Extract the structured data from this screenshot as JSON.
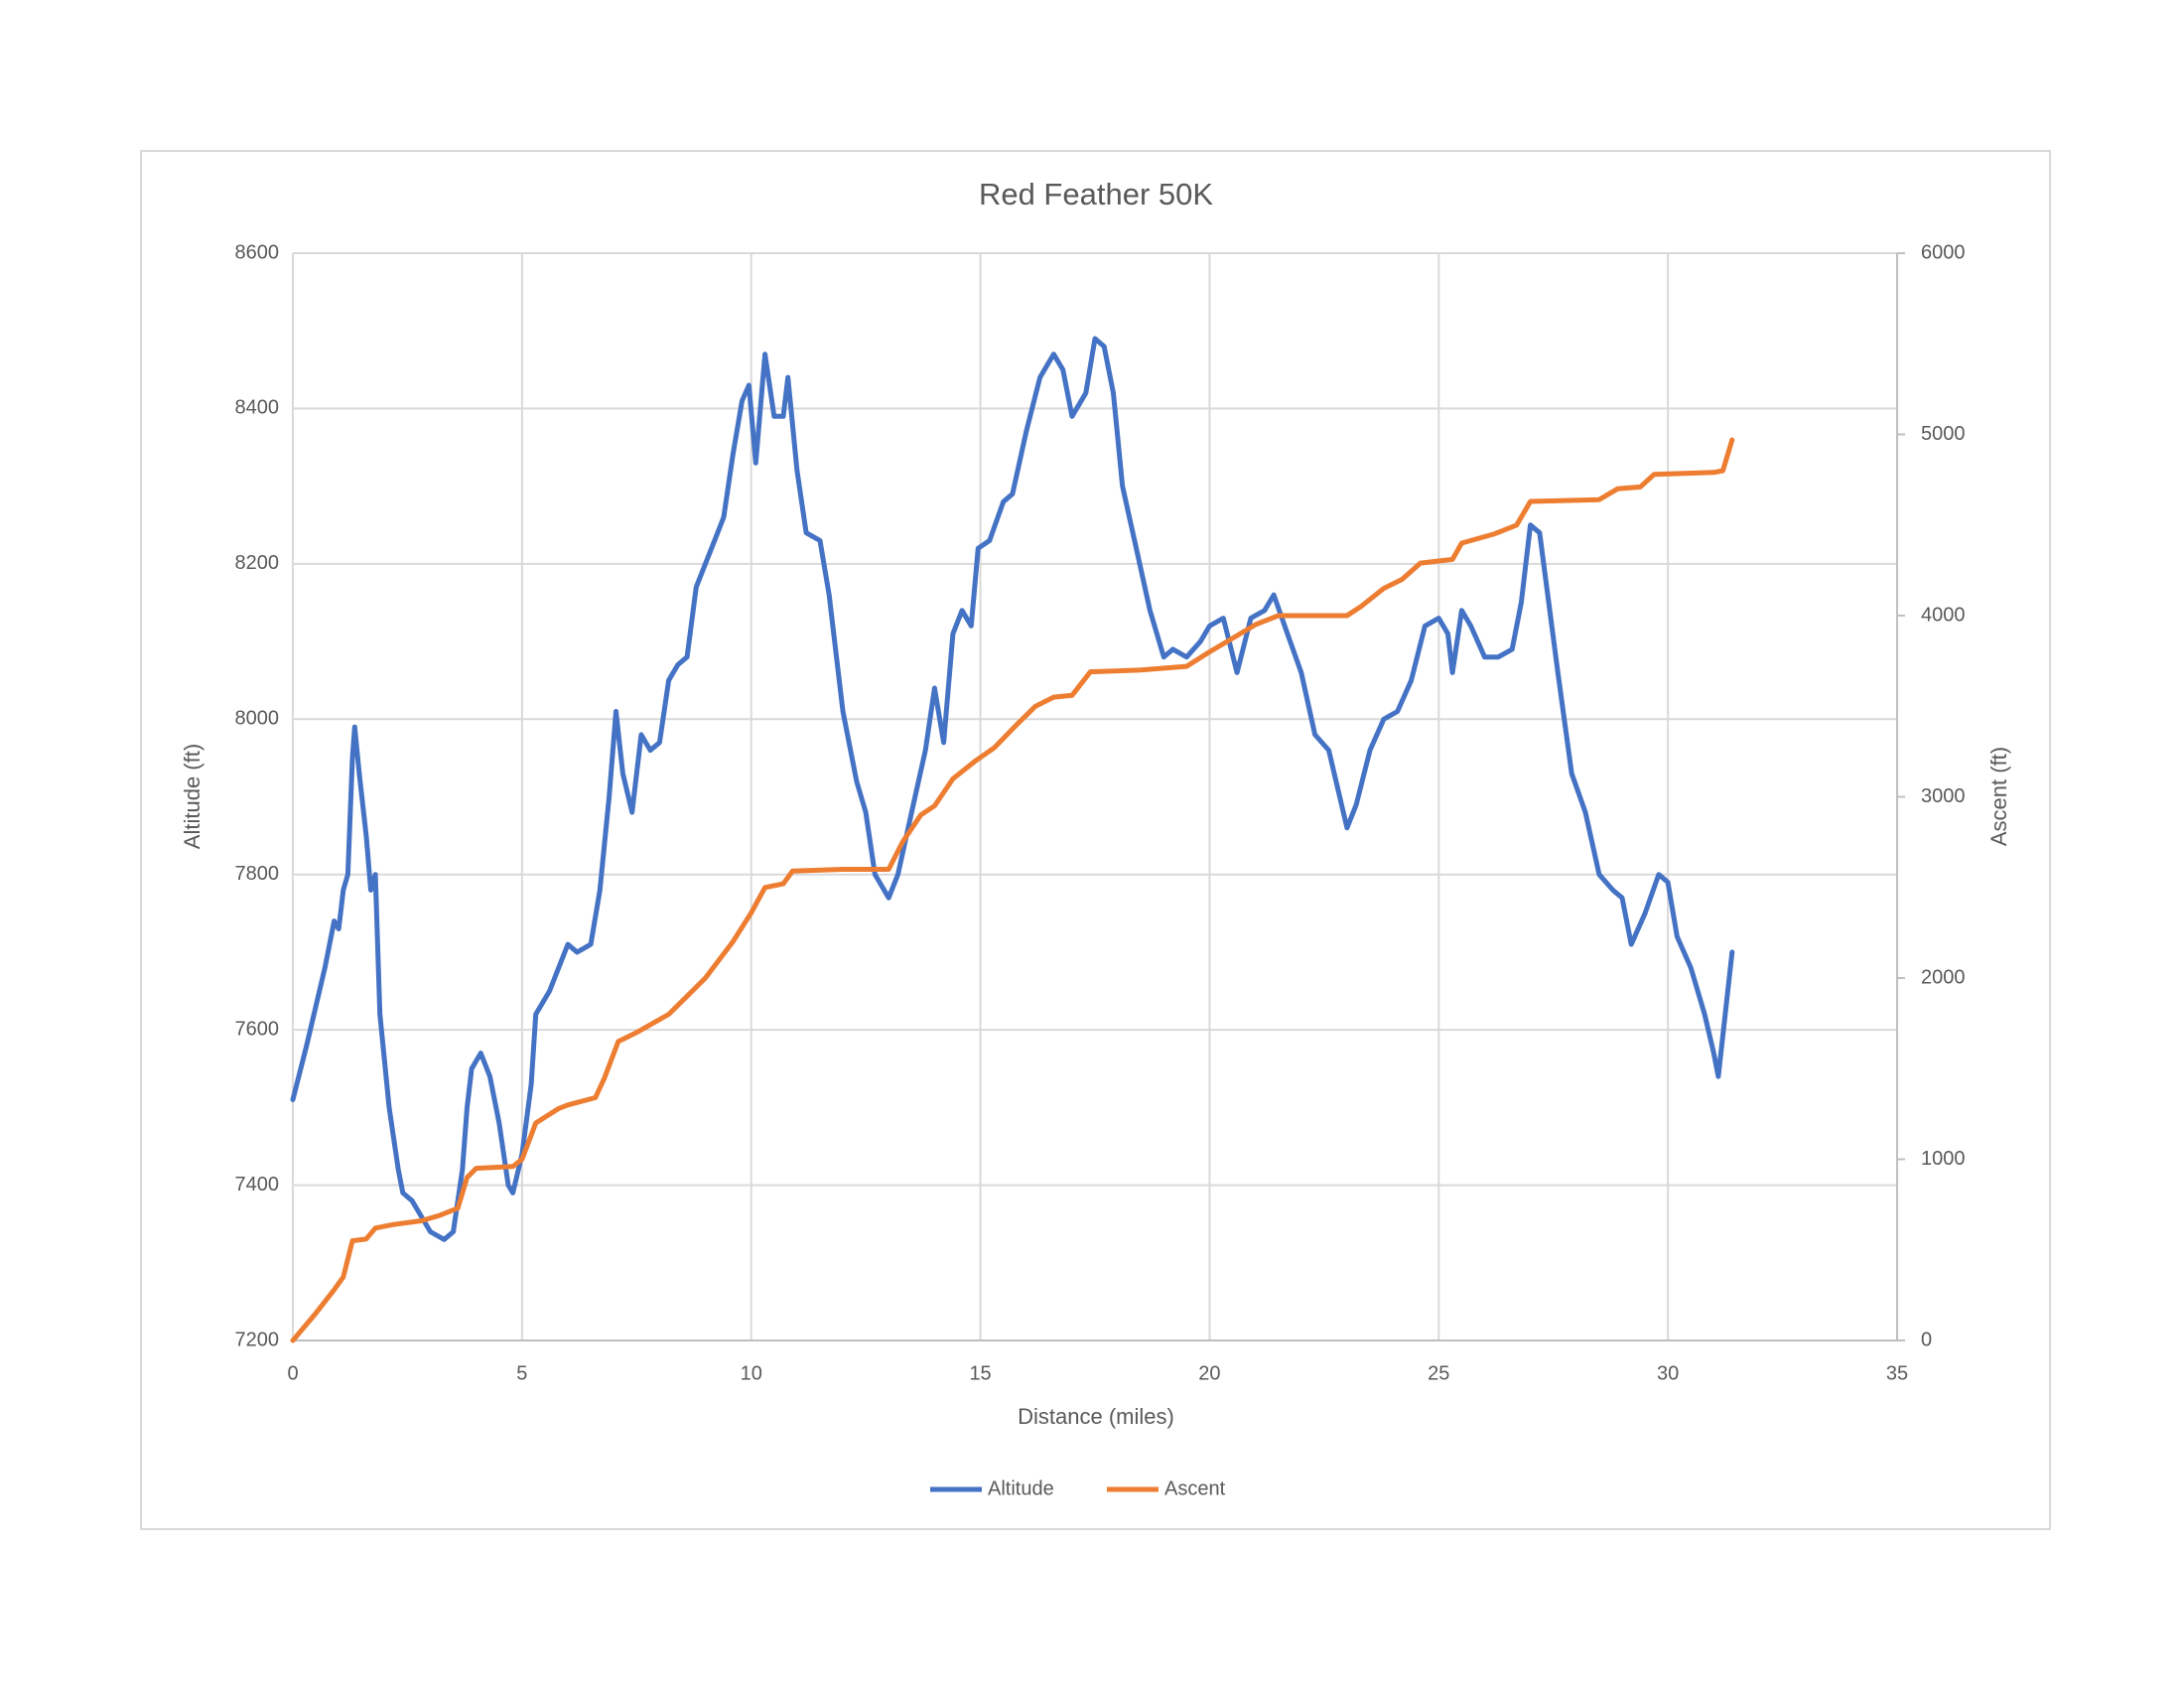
{
  "chart_data": {
    "type": "line",
    "title": "Red Feather 50K",
    "x_label": "Distance (miles)",
    "y_label": "Altitude (ft)",
    "y2_label": "Ascent (ft)",
    "xlim": [
      0,
      35
    ],
    "xticks": [
      0,
      5,
      10,
      15,
      20,
      25,
      30,
      35
    ],
    "ylim": [
      7200,
      8600
    ],
    "yticks": [
      7200,
      7400,
      7600,
      7800,
      8000,
      8200,
      8400,
      8600
    ],
    "y2lim": [
      0,
      6000
    ],
    "y2ticks": [
      0,
      1000,
      2000,
      3000,
      4000,
      5000,
      6000
    ],
    "grid": true,
    "legend": "bottom",
    "series": [
      {
        "name": "Altitude",
        "color": "#4472c4",
        "axis": "y",
        "x": [
          0,
          0.3,
          0.5,
          0.7,
          0.9,
          1.0,
          1.1,
          1.2,
          1.3,
          1.35,
          1.45,
          1.6,
          1.7,
          1.8,
          1.9,
          2.1,
          2.3,
          2.4,
          2.6,
          2.8,
          3.0,
          3.3,
          3.5,
          3.7,
          3.8,
          3.9,
          4.1,
          4.3,
          4.5,
          4.7,
          4.8,
          5.0,
          5.2,
          5.3,
          5.6,
          5.8,
          6.0,
          6.2,
          6.5,
          6.7,
          6.9,
          7.05,
          7.2,
          7.4,
          7.6,
          7.8,
          8.0,
          8.2,
          8.4,
          8.6,
          8.8,
          9.0,
          9.2,
          9.4,
          9.6,
          9.8,
          9.95,
          10.1,
          10.3,
          10.5,
          10.7,
          10.8,
          11.0,
          11.2,
          11.5,
          11.7,
          12.0,
          12.3,
          12.5,
          12.7,
          13.0,
          13.2,
          13.5,
          13.8,
          14.0,
          14.2,
          14.4,
          14.6,
          14.8,
          14.95,
          15.2,
          15.5,
          15.7,
          16.0,
          16.3,
          16.6,
          16.8,
          17.0,
          17.3,
          17.5,
          17.7,
          17.9,
          18.1,
          18.4,
          18.7,
          19.0,
          19.2,
          19.5,
          19.8,
          20.0,
          20.3,
          20.6,
          20.9,
          21.2,
          21.4,
          21.7,
          22.0,
          22.3,
          22.6,
          22.8,
          23.0,
          23.2,
          23.5,
          23.8,
          24.1,
          24.4,
          24.7,
          25.0,
          25.2,
          25.3,
          25.5,
          25.7,
          26.0,
          26.3,
          26.6,
          26.8,
          27.0,
          27.2,
          27.4,
          27.6,
          27.9,
          28.2,
          28.5,
          28.8,
          29.0,
          29.2,
          29.5,
          29.8,
          30.0,
          30.2,
          30.5,
          30.8,
          31.0,
          31.1,
          31.4
        ],
        "values": [
          7510,
          7580,
          7630,
          7680,
          7740,
          7730,
          7780,
          7800,
          7950,
          7990,
          7930,
          7850,
          7780,
          7800,
          7620,
          7500,
          7420,
          7390,
          7380,
          7360,
          7340,
          7330,
          7340,
          7420,
          7500,
          7550,
          7570,
          7540,
          7480,
          7400,
          7390,
          7440,
          7530,
          7620,
          7650,
          7680,
          7710,
          7700,
          7710,
          7780,
          7900,
          8010,
          7930,
          7880,
          7980,
          7960,
          7970,
          8050,
          8070,
          8080,
          8170,
          8200,
          8230,
          8260,
          8340,
          8410,
          8430,
          8330,
          8470,
          8390,
          8390,
          8440,
          8320,
          8240,
          8230,
          8160,
          8010,
          7920,
          7880,
          7800,
          7770,
          7800,
          7880,
          7960,
          8040,
          7970,
          8110,
          8140,
          8120,
          8220,
          8230,
          8280,
          8290,
          8370,
          8440,
          8470,
          8450,
          8390,
          8420,
          8490,
          8480,
          8420,
          8300,
          8220,
          8140,
          8080,
          8090,
          8080,
          8100,
          8120,
          8130,
          8060,
          8130,
          8140,
          8160,
          8110,
          8060,
          7980,
          7960,
          7910,
          7860,
          7890,
          7960,
          8000,
          8010,
          8050,
          8120,
          8130,
          8110,
          8060,
          8140,
          8120,
          8080,
          8080,
          8090,
          8150,
          8250,
          8240,
          8150,
          8060,
          7930,
          7880,
          7800,
          7780,
          7770,
          7710,
          7750,
          7800,
          7790,
          7720,
          7680,
          7620,
          7570,
          7540,
          7700
        ]
      },
      {
        "name": "Ascent",
        "color": "#ed7d31",
        "axis": "y2",
        "x": [
          0,
          0.5,
          0.9,
          1.1,
          1.3,
          1.6,
          1.8,
          2.2,
          2.8,
          3.2,
          3.6,
          3.8,
          4.0,
          4.8,
          5.0,
          5.3,
          5.8,
          6.0,
          6.6,
          6.8,
          7.1,
          7.5,
          8.2,
          8.6,
          9.0,
          9.6,
          10.0,
          10.3,
          10.7,
          10.9,
          12.0,
          13.0,
          13.3,
          13.7,
          14.0,
          14.4,
          14.9,
          15.3,
          15.8,
          16.2,
          16.6,
          17.0,
          17.4,
          18.5,
          19.5,
          20.0,
          20.4,
          21.0,
          21.5,
          23.0,
          23.3,
          23.8,
          24.2,
          24.6,
          25.3,
          25.5,
          26.2,
          26.7,
          27.0,
          28.5,
          28.9,
          29.4,
          29.7,
          31.0,
          31.2,
          31.4
        ],
        "values": [
          0,
          150,
          280,
          350,
          550,
          560,
          620,
          640,
          660,
          690,
          730,
          900,
          950,
          960,
          1000,
          1200,
          1280,
          1300,
          1340,
          1450,
          1650,
          1700,
          1800,
          1900,
          2000,
          2200,
          2360,
          2500,
          2520,
          2590,
          2600,
          2600,
          2750,
          2900,
          2950,
          3100,
          3200,
          3270,
          3400,
          3500,
          3550,
          3560,
          3690,
          3700,
          3720,
          3800,
          3860,
          3950,
          4000,
          4000,
          4050,
          4150,
          4200,
          4290,
          4310,
          4400,
          4450,
          4500,
          4630,
          4640,
          4700,
          4710,
          4780,
          4790,
          4800,
          4970
        ]
      }
    ]
  }
}
